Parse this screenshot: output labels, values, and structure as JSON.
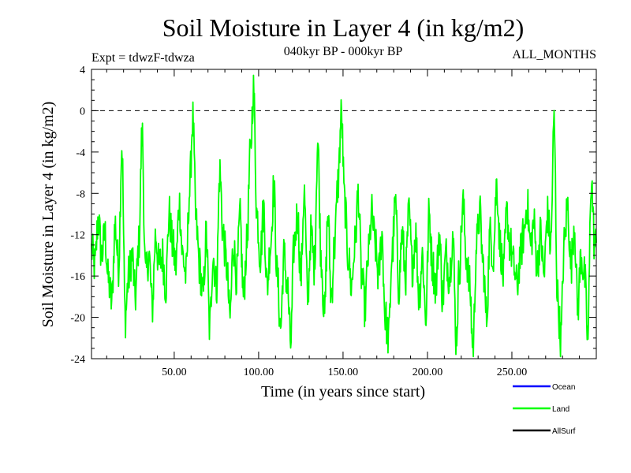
{
  "chart_data": {
    "type": "line",
    "title": "Soil Moisture in Layer 4 (in kg/m2)",
    "subtitle_left": "Expt = tdwzF-tdwza",
    "subtitle_center": "040kyr BP - 000kyr BP",
    "subtitle_right": "ALL_MONTHS",
    "xlabel": "Time (in years since start)",
    "ylabel": "Soil Moisture in Layer 4 (in kg/m2)",
    "xlim": [
      1,
      300
    ],
    "ylim": [
      -24,
      4
    ],
    "xticks": [
      50,
      100,
      150,
      200,
      250
    ],
    "xtick_labels": [
      "50.00",
      "100.00",
      "150.00",
      "200.00",
      "250.00"
    ],
    "yticks": [
      4,
      0,
      -4,
      -8,
      -12,
      -16,
      -20,
      -24
    ],
    "ytick_labels": [
      "4",
      "0",
      "-4",
      "-8",
      "-12",
      "-16",
      "-20",
      "-24"
    ],
    "reference_line": {
      "y": 0,
      "style": "dashed"
    },
    "legend_position": "bottom-right",
    "legend": [
      {
        "name": "Ocean",
        "color": "#0000ff"
      },
      {
        "name": "Land",
        "color": "#00ff00"
      },
      {
        "name": "AllSurf",
        "color": "#000000"
      }
    ],
    "series": [
      {
        "name": "Land",
        "color": "#00ff00",
        "anchors": [
          [
            1,
            -13.5
          ],
          [
            3,
            -15
          ],
          [
            5,
            -10.5
          ],
          [
            7,
            -14
          ],
          [
            9,
            -12
          ],
          [
            11,
            -16.5
          ],
          [
            13,
            -18.5
          ],
          [
            15,
            -11
          ],
          [
            17,
            -15
          ],
          [
            19,
            -3.5
          ],
          [
            21,
            -20
          ],
          [
            23,
            -16
          ],
          [
            25,
            -14
          ],
          [
            27,
            -18
          ],
          [
            29,
            -13
          ],
          [
            31,
            -2.2
          ],
          [
            33,
            -16
          ],
          [
            35,
            -14
          ],
          [
            37,
            -19
          ],
          [
            39,
            -12
          ],
          [
            41,
            -15
          ],
          [
            43,
            -14
          ],
          [
            45,
            -17
          ],
          [
            47,
            -10
          ],
          [
            49,
            -13
          ],
          [
            51,
            -15
          ],
          [
            53,
            -9
          ],
          [
            55,
            -14
          ],
          [
            57,
            -16
          ],
          [
            59,
            -8
          ],
          [
            61,
            -0.8
          ],
          [
            63,
            -11
          ],
          [
            65,
            -15
          ],
          [
            67,
            -18
          ],
          [
            69,
            -12
          ],
          [
            71,
            -21
          ],
          [
            73,
            -14
          ],
          [
            75,
            -17
          ],
          [
            77,
            -6
          ],
          [
            79,
            -12
          ],
          [
            81,
            -15
          ],
          [
            83,
            -20
          ],
          [
            85,
            -13
          ],
          [
            87,
            -16
          ],
          [
            89,
            -10.5
          ],
          [
            91,
            -18
          ],
          [
            93,
            -13
          ],
          [
            95,
            -4.5
          ],
          [
            97,
            2
          ],
          [
            99,
            -10
          ],
          [
            101,
            -14
          ],
          [
            103,
            -9.5
          ],
          [
            105,
            -17
          ],
          [
            107,
            -13
          ],
          [
            109,
            -7.5
          ],
          [
            111,
            -16
          ],
          [
            113,
            -21
          ],
          [
            115,
            -14
          ],
          [
            117,
            -17
          ],
          [
            119,
            -22.5
          ],
          [
            121,
            -13
          ],
          [
            123,
            -10
          ],
          [
            125,
            -16
          ],
          [
            127,
            -8
          ],
          [
            129,
            -18
          ],
          [
            131,
            -12
          ],
          [
            133,
            -15
          ],
          [
            135,
            -3
          ],
          [
            137,
            -14
          ],
          [
            139,
            -20
          ],
          [
            141,
            -10
          ],
          [
            143,
            -18
          ],
          [
            145,
            -13
          ],
          [
            147,
            -7
          ],
          [
            149,
            -0.5
          ],
          [
            151,
            -9
          ],
          [
            153,
            -14
          ],
          [
            155,
            -17
          ],
          [
            157,
            -13
          ],
          [
            159,
            -8
          ],
          [
            161,
            -16
          ],
          [
            163,
            -19
          ],
          [
            165,
            -14
          ],
          [
            167,
            -10
          ],
          [
            169,
            -13
          ],
          [
            171,
            -16
          ],
          [
            173,
            -12
          ],
          [
            175,
            -20
          ],
          [
            177,
            -22
          ],
          [
            179,
            -14
          ],
          [
            181,
            -9
          ],
          [
            183,
            -17
          ],
          [
            185,
            -12
          ],
          [
            187,
            -16
          ],
          [
            189,
            -10
          ],
          [
            191,
            -15
          ],
          [
            193,
            -12
          ],
          [
            195,
            -18
          ],
          [
            197,
            -14
          ],
          [
            199,
            -20
          ],
          [
            201,
            -10
          ],
          [
            203,
            -15
          ],
          [
            205,
            -17
          ],
          [
            207,
            -12
          ],
          [
            209,
            -18
          ],
          [
            211,
            -14
          ],
          [
            213,
            -16
          ],
          [
            215,
            -12
          ],
          [
            217,
            -22
          ],
          [
            219,
            -15
          ],
          [
            221,
            -9
          ],
          [
            223,
            -14
          ],
          [
            225,
            -17
          ],
          [
            227,
            -23
          ],
          [
            229,
            -13
          ],
          [
            231,
            -10
          ],
          [
            233,
            -15
          ],
          [
            235,
            -20
          ],
          [
            237,
            -12
          ],
          [
            239,
            -14
          ],
          [
            241,
            -7
          ],
          [
            243,
            -13
          ],
          [
            245,
            -16
          ],
          [
            247,
            -10
          ],
          [
            249,
            -13
          ],
          [
            251,
            -15
          ],
          [
            253,
            -17
          ],
          [
            255,
            -14
          ],
          [
            257,
            -12
          ],
          [
            259,
            -9
          ],
          [
            261,
            -13
          ],
          [
            263,
            -11
          ],
          [
            265,
            -15
          ],
          [
            267,
            -12
          ],
          [
            269,
            -16
          ],
          [
            271,
            -10
          ],
          [
            273,
            -13
          ],
          [
            275,
            -1.2
          ],
          [
            277,
            -18
          ],
          [
            279,
            -22
          ],
          [
            281,
            -13
          ],
          [
            283,
            -9
          ],
          [
            285,
            -15
          ],
          [
            287,
            -11
          ],
          [
            289,
            -19
          ],
          [
            291,
            -14
          ],
          [
            293,
            -16
          ],
          [
            295,
            -22
          ],
          [
            297,
            -6.5
          ],
          [
            299,
            -13
          ]
        ]
      }
    ]
  }
}
